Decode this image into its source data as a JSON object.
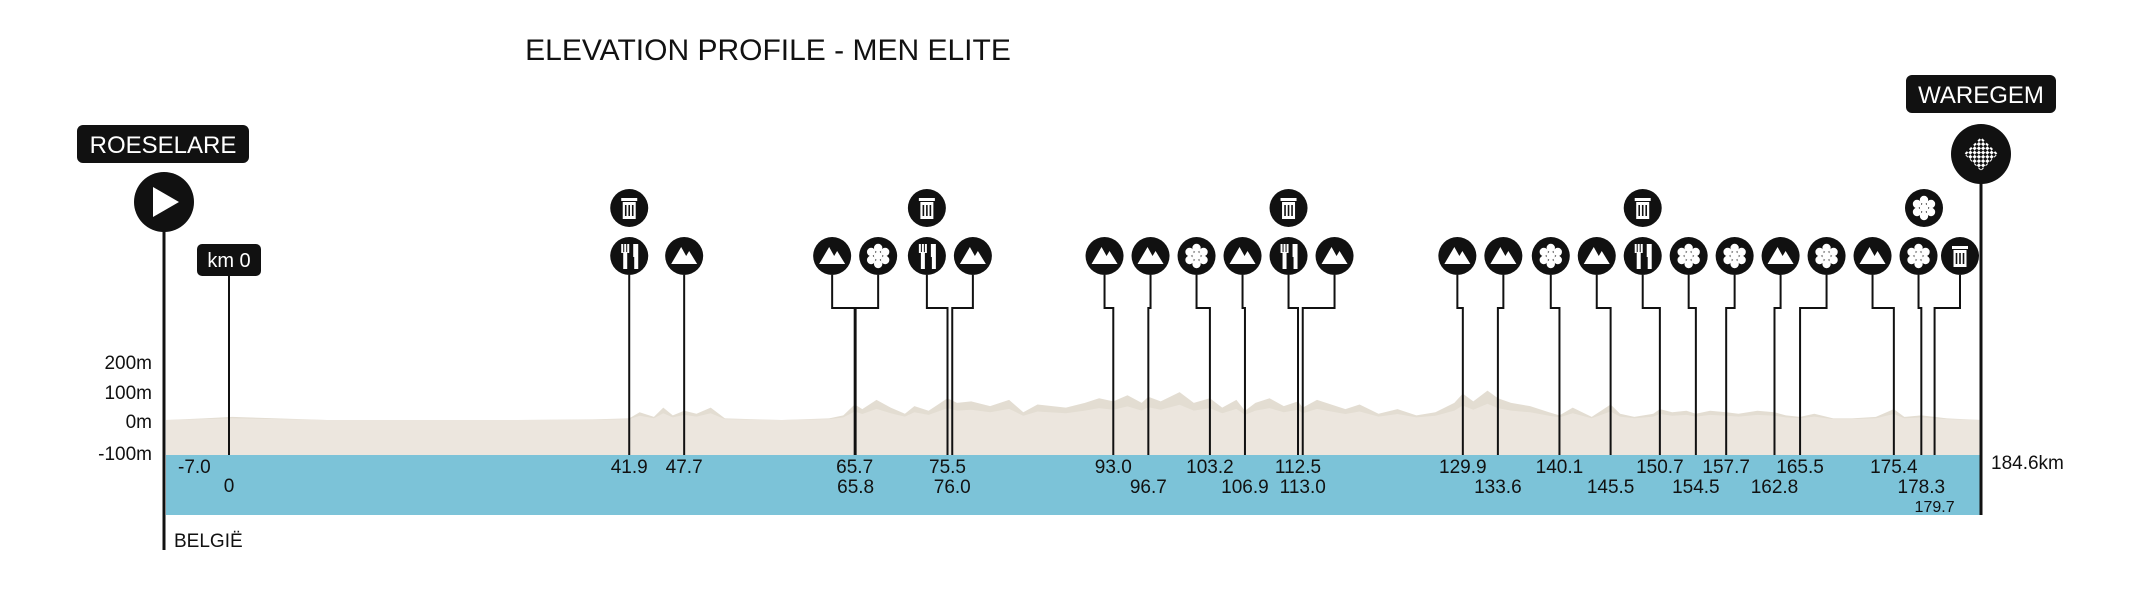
{
  "chart_data": {
    "type": "area",
    "title": "ELEVATION PROFILE - MEN ELITE",
    "start": {
      "label": "ROESELARE",
      "km_label": "km 0",
      "neutral_start_km": -7.0
    },
    "finish": {
      "label": "WAREGEM",
      "km": 184.6,
      "km_label": "184.6km"
    },
    "country": "BELGIË",
    "xlim": [
      -7.0,
      184.6
    ],
    "ylim": [
      -100,
      200
    ],
    "yticks": [
      "200m",
      "100m",
      "0m",
      "-100m"
    ],
    "colors": {
      "terrain": "#e3ddd2",
      "terrain_light": "#ede9e1",
      "road_band": "#7cc3d8",
      "marker": "#111111"
    },
    "elevation": {
      "x": [
        -7.0,
        -3.0,
        0.0,
        10.0,
        30.0,
        38.0,
        41.9,
        43.0,
        44.5,
        45.5,
        46.5,
        47.7,
        49.0,
        50.5,
        52.0,
        58.0,
        63.0,
        64.5,
        65.7,
        66.5,
        68.0,
        69.5,
        71.0,
        72.0,
        73.5,
        75.5,
        76.5,
        78.0,
        80.0,
        82.0,
        83.5,
        85.0,
        88.0,
        90.0,
        91.5,
        93.0,
        94.5,
        96.0,
        96.7,
        98.0,
        100.0,
        101.5,
        103.2,
        104.5,
        106.0,
        106.9,
        108.0,
        109.5,
        111.0,
        112.5,
        113.0,
        114.5,
        116.0,
        117.5,
        119.0,
        121.0,
        123.0,
        125.0,
        127.0,
        129.0,
        129.9,
        131.0,
        132.5,
        133.6,
        135.0,
        137.0,
        139.0,
        140.1,
        141.5,
        143.5,
        144.5,
        145.5,
        146.5,
        148.0,
        150.0,
        150.7,
        152.0,
        153.5,
        154.5,
        156.0,
        157.7,
        159.0,
        161.0,
        162.8,
        164.0,
        165.5,
        167.0,
        169.0,
        171.0,
        173.5,
        175.4,
        176.5,
        178.3,
        179.7,
        181.0,
        184.6
      ],
      "y": [
        0,
        5,
        10,
        0,
        0,
        2,
        5,
        25,
        10,
        40,
        15,
        30,
        20,
        40,
        5,
        0,
        5,
        15,
        50,
        35,
        65,
        40,
        20,
        45,
        30,
        70,
        55,
        60,
        45,
        65,
        25,
        50,
        40,
        55,
        70,
        60,
        80,
        55,
        75,
        60,
        90,
        55,
        70,
        40,
        65,
        30,
        55,
        70,
        45,
        60,
        40,
        65,
        50,
        35,
        50,
        20,
        35,
        15,
        25,
        55,
        85,
        60,
        95,
        70,
        55,
        45,
        25,
        15,
        40,
        10,
        30,
        50,
        20,
        10,
        20,
        35,
        25,
        30,
        20,
        30,
        25,
        20,
        30,
        25,
        15,
        10,
        20,
        5,
        5,
        10,
        35,
        10,
        15,
        10,
        5,
        0
      ]
    },
    "markers": [
      {
        "km": 41.9,
        "label": "41.9",
        "type": "feed",
        "label_row": 0
      },
      {
        "km": 47.7,
        "label": "47.7",
        "type": "climb",
        "label_row": 0
      },
      {
        "km": 65.7,
        "label": "65.7",
        "type": "climb",
        "label_row": 0
      },
      {
        "km": 65.8,
        "label": "65.8",
        "type": "cobbles",
        "label_row": 1
      },
      {
        "km": 75.5,
        "label": "75.5",
        "type": "feed",
        "label_row": 0
      },
      {
        "km": 76.0,
        "label": "76.0",
        "type": "climb",
        "label_row": 1
      },
      {
        "km": 93.0,
        "label": "93.0",
        "type": "climb",
        "label_row": 0
      },
      {
        "km": 96.7,
        "label": "96.7",
        "type": "climb",
        "label_row": 1
      },
      {
        "km": 103.2,
        "label": "103.2",
        "type": "cobbles",
        "label_row": 0
      },
      {
        "km": 106.9,
        "label": "106.9",
        "type": "climb",
        "label_row": 1
      },
      {
        "km": 112.5,
        "label": "112.5",
        "type": "feed",
        "label_row": 0
      },
      {
        "km": 113.0,
        "label": "113.0",
        "type": "climb",
        "label_row": 1
      },
      {
        "km": 129.9,
        "label": "129.9",
        "type": "climb",
        "label_row": 0
      },
      {
        "km": 133.6,
        "label": "133.6",
        "type": "climb",
        "label_row": 1
      },
      {
        "km": 140.1,
        "label": "140.1",
        "type": "cobbles",
        "label_row": 0
      },
      {
        "km": 145.5,
        "label": "145.5",
        "type": "climb",
        "label_row": 1
      },
      {
        "km": 150.7,
        "label": "150.7",
        "type": "feed",
        "label_row": 0
      },
      {
        "km": 154.5,
        "label": "154.5",
        "type": "cobbles",
        "label_row": 1
      },
      {
        "km": 157.7,
        "label": "157.7",
        "type": "cobbles",
        "label_row": 0
      },
      {
        "km": 162.8,
        "label": "162.8",
        "type": "climb",
        "label_row": 1
      },
      {
        "km": 165.5,
        "label": "165.5",
        "type": "cobbles",
        "label_row": 0
      },
      {
        "km": 175.4,
        "label": "175.4",
        "type": "climb",
        "label_row": 0
      },
      {
        "km": 178.3,
        "label": "178.3",
        "type": "cobbles",
        "label_row": 1
      },
      {
        "km": 179.7,
        "label": "179.7",
        "type": "waste",
        "label_row": 2
      }
    ],
    "waste_zones": [
      41.9,
      75.5,
      112.5,
      150.7
    ]
  }
}
